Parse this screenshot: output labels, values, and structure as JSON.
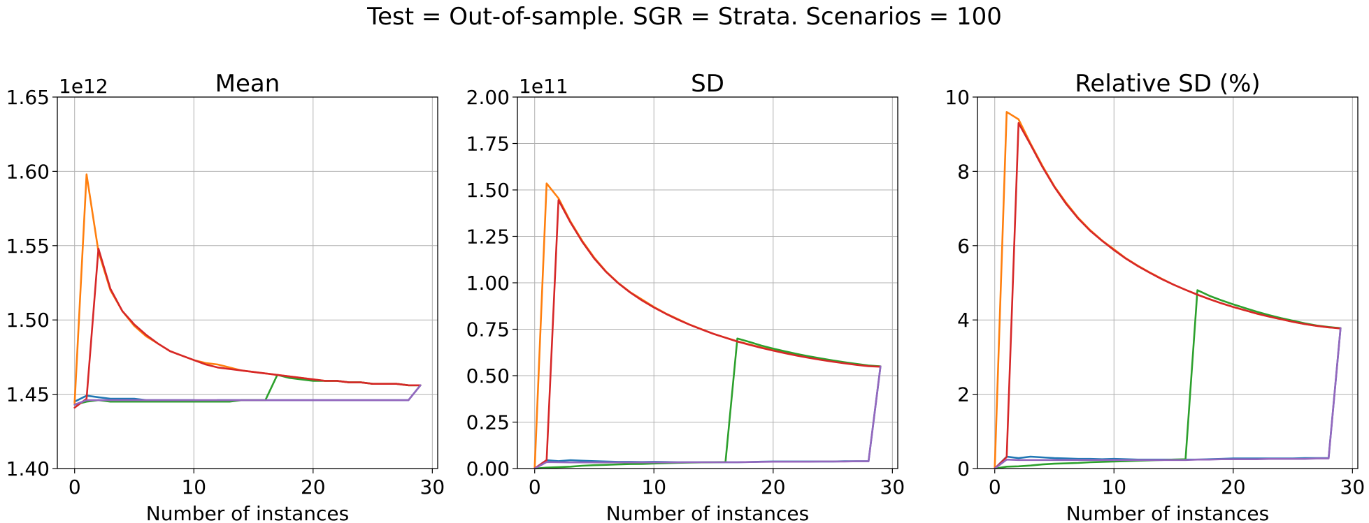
{
  "figure": {
    "suptitle": "Test = Out-of-sample. SGR = Strata. Scenarios = 100"
  },
  "colors": {
    "C0": "#1f77b4",
    "C1": "#ff7f0e",
    "C2": "#2ca02c",
    "C3": "#d62728",
    "C4": "#9467bd"
  },
  "chart_data": [
    {
      "type": "line",
      "title": "Mean",
      "xlabel": "Number of instances",
      "ylabel": "",
      "offset_text": "1e12",
      "xlim": [
        -1.45,
        30.45
      ],
      "ylim": [
        1.4,
        1.65
      ],
      "xticks": [
        0,
        10,
        20,
        30
      ],
      "yticks": [
        1.4,
        1.45,
        1.5,
        1.55,
        1.6,
        1.65
      ],
      "ytick_labels": [
        "1.40",
        "1.45",
        "1.50",
        "1.55",
        "1.60",
        "1.65"
      ],
      "grid": true,
      "series": [
        {
          "color": "#1f77b4",
          "x": [
            0,
            1,
            2,
            3,
            4,
            5,
            6,
            7,
            8,
            9,
            10,
            11,
            12,
            13,
            14,
            15,
            16,
            17,
            18,
            19,
            20,
            21,
            22,
            23,
            24,
            25,
            26,
            27,
            28,
            29
          ],
          "values": [
            1.445,
            1.449,
            1.448,
            1.447,
            1.447,
            1.447,
            1.446,
            1.446,
            1.446,
            1.446,
            1.446,
            1.445,
            1.446,
            1.446,
            1.446,
            1.446,
            1.446,
            1.446,
            1.446,
            1.446,
            1.446,
            1.446,
            1.446,
            1.446,
            1.446,
            1.446,
            1.446,
            1.446,
            1.446,
            1.456
          ]
        },
        {
          "color": "#ff7f0e",
          "x": [
            0,
            1,
            2,
            3,
            4,
            5,
            6,
            7,
            8,
            9,
            10,
            11,
            12,
            13,
            14,
            15,
            16,
            17,
            18,
            19,
            20,
            21,
            22,
            23,
            24,
            25,
            26,
            27,
            28,
            29
          ],
          "values": [
            1.444,
            1.598,
            1.546,
            1.52,
            1.506,
            1.496,
            1.489,
            1.484,
            1.479,
            1.476,
            1.473,
            1.471,
            1.47,
            1.468,
            1.466,
            1.465,
            1.464,
            1.463,
            1.462,
            1.461,
            1.46,
            1.459,
            1.459,
            1.458,
            1.458,
            1.457,
            1.457,
            1.457,
            1.456,
            1.456
          ]
        },
        {
          "color": "#2ca02c",
          "x": [
            0,
            1,
            2,
            3,
            4,
            5,
            6,
            7,
            8,
            9,
            10,
            11,
            12,
            13,
            14,
            15,
            16,
            17,
            18,
            19,
            20,
            21,
            22,
            23,
            24,
            25,
            26,
            27,
            28,
            29
          ],
          "values": [
            1.443,
            1.445,
            1.446,
            1.445,
            1.445,
            1.445,
            1.445,
            1.445,
            1.445,
            1.445,
            1.445,
            1.445,
            1.445,
            1.445,
            1.446,
            1.446,
            1.446,
            1.463,
            1.461,
            1.46,
            1.459,
            1.459,
            1.459,
            1.458,
            1.458,
            1.457,
            1.457,
            1.457,
            1.456,
            1.456
          ]
        },
        {
          "color": "#d62728",
          "x": [
            0,
            1,
            2,
            3,
            4,
            5,
            6,
            7,
            8,
            9,
            10,
            11,
            12,
            13,
            14,
            15,
            16,
            17,
            18,
            19,
            20,
            21,
            22,
            23,
            24,
            25,
            26,
            27,
            28,
            29
          ],
          "values": [
            1.441,
            1.447,
            1.548,
            1.521,
            1.506,
            1.497,
            1.49,
            1.484,
            1.479,
            1.476,
            1.473,
            1.47,
            1.468,
            1.467,
            1.466,
            1.465,
            1.464,
            1.463,
            1.462,
            1.461,
            1.46,
            1.459,
            1.459,
            1.458,
            1.458,
            1.457,
            1.457,
            1.457,
            1.456,
            1.456
          ]
        },
        {
          "color": "#9467bd",
          "x": [
            0,
            1,
            2,
            3,
            4,
            5,
            6,
            7,
            8,
            9,
            10,
            11,
            12,
            13,
            14,
            15,
            16,
            17,
            18,
            19,
            20,
            21,
            22,
            23,
            24,
            25,
            26,
            27,
            28,
            29
          ],
          "values": [
            1.443,
            1.446,
            1.446,
            1.446,
            1.446,
            1.446,
            1.446,
            1.446,
            1.446,
            1.446,
            1.446,
            1.446,
            1.446,
            1.446,
            1.446,
            1.446,
            1.446,
            1.446,
            1.446,
            1.446,
            1.446,
            1.446,
            1.446,
            1.446,
            1.446,
            1.446,
            1.446,
            1.446,
            1.446,
            1.456
          ]
        }
      ]
    },
    {
      "type": "line",
      "title": "SD",
      "xlabel": "Number of instances",
      "ylabel": "",
      "offset_text": "1e11",
      "xlim": [
        -1.45,
        30.45
      ],
      "ylim": [
        0.0,
        2.0
      ],
      "xticks": [
        0,
        10,
        20,
        30
      ],
      "yticks": [
        0.0,
        0.25,
        0.5,
        0.75,
        1.0,
        1.25,
        1.5,
        1.75,
        2.0
      ],
      "ytick_labels": [
        "0.00",
        "0.25",
        "0.50",
        "0.75",
        "1.00",
        "1.25",
        "1.50",
        "1.75",
        "2.00"
      ],
      "grid": true,
      "series": [
        {
          "color": "#1f77b4",
          "x": [
            0,
            1,
            2,
            3,
            4,
            5,
            6,
            7,
            8,
            9,
            10,
            11,
            12,
            13,
            14,
            15,
            16,
            17,
            18,
            19,
            20,
            21,
            22,
            23,
            24,
            25,
            26,
            27,
            28,
            29
          ],
          "values": [
            0.0,
            0.045,
            0.04,
            0.045,
            0.042,
            0.04,
            0.038,
            0.036,
            0.036,
            0.035,
            0.036,
            0.035,
            0.034,
            0.034,
            0.034,
            0.034,
            0.034,
            0.034,
            0.035,
            0.037,
            0.038,
            0.038,
            0.038,
            0.038,
            0.038,
            0.038,
            0.039,
            0.039,
            0.039,
            0.55
          ]
        },
        {
          "color": "#ff7f0e",
          "x": [
            0,
            1,
            2,
            3,
            4,
            5,
            6,
            7,
            8,
            9,
            10,
            11,
            12,
            13,
            14,
            15,
            16,
            17,
            18,
            19,
            20,
            21,
            22,
            23,
            24,
            25,
            26,
            27,
            28,
            29
          ],
          "values": [
            0.0,
            1.535,
            1.455,
            1.33,
            1.225,
            1.135,
            1.06,
            1.0,
            0.95,
            0.91,
            0.87,
            0.835,
            0.805,
            0.775,
            0.75,
            0.725,
            0.705,
            0.685,
            0.668,
            0.652,
            0.637,
            0.623,
            0.61,
            0.598,
            0.587,
            0.577,
            0.568,
            0.56,
            0.553,
            0.55
          ]
        },
        {
          "color": "#2ca02c",
          "x": [
            0,
            1,
            2,
            3,
            4,
            5,
            6,
            7,
            8,
            9,
            10,
            11,
            12,
            13,
            14,
            15,
            16,
            17,
            18,
            19,
            20,
            21,
            22,
            23,
            24,
            25,
            26,
            27,
            28,
            29
          ],
          "values": [
            0.0,
            0.005,
            0.007,
            0.01,
            0.015,
            0.018,
            0.02,
            0.022,
            0.024,
            0.025,
            0.027,
            0.029,
            0.031,
            0.032,
            0.033,
            0.034,
            0.035,
            0.7,
            0.682,
            0.662,
            0.646,
            0.631,
            0.617,
            0.604,
            0.593,
            0.582,
            0.572,
            0.563,
            0.555,
            0.55
          ]
        },
        {
          "color": "#d62728",
          "x": [
            0,
            1,
            2,
            3,
            4,
            5,
            6,
            7,
            8,
            9,
            10,
            11,
            12,
            13,
            14,
            15,
            16,
            17,
            18,
            19,
            20,
            21,
            22,
            23,
            24,
            25,
            26,
            27,
            28,
            29
          ],
          "values": [
            0.0,
            0.045,
            1.445,
            1.325,
            1.22,
            1.13,
            1.058,
            0.998,
            0.948,
            0.905,
            0.867,
            0.833,
            0.802,
            0.774,
            0.749,
            0.725,
            0.704,
            0.684,
            0.666,
            0.65,
            0.635,
            0.621,
            0.608,
            0.596,
            0.585,
            0.575,
            0.566,
            0.558,
            0.551,
            0.548
          ]
        },
        {
          "color": "#9467bd",
          "x": [
            0,
            1,
            2,
            3,
            4,
            5,
            6,
            7,
            8,
            9,
            10,
            11,
            12,
            13,
            14,
            15,
            16,
            17,
            18,
            19,
            20,
            21,
            22,
            23,
            24,
            25,
            26,
            27,
            28,
            29
          ],
          "values": [
            0.0,
            0.035,
            0.034,
            0.033,
            0.033,
            0.033,
            0.033,
            0.033,
            0.033,
            0.033,
            0.033,
            0.033,
            0.033,
            0.034,
            0.034,
            0.034,
            0.034,
            0.034,
            0.035,
            0.036,
            0.037,
            0.037,
            0.037,
            0.037,
            0.038,
            0.038,
            0.038,
            0.039,
            0.039,
            0.55
          ]
        }
      ]
    },
    {
      "type": "line",
      "title": "Relative SD (%)",
      "xlabel": "Number of instances",
      "ylabel": "",
      "offset_text": "",
      "xlim": [
        -1.45,
        30.45
      ],
      "ylim": [
        0,
        10
      ],
      "xticks": [
        0,
        10,
        20,
        30
      ],
      "yticks": [
        0,
        2,
        4,
        6,
        8,
        10
      ],
      "ytick_labels": [
        "0",
        "2",
        "4",
        "6",
        "8",
        "10"
      ],
      "grid": true,
      "series": [
        {
          "color": "#1f77b4",
          "x": [
            0,
            1,
            2,
            3,
            4,
            5,
            6,
            7,
            8,
            9,
            10,
            11,
            12,
            13,
            14,
            15,
            16,
            17,
            18,
            19,
            20,
            21,
            22,
            23,
            24,
            25,
            26,
            27,
            28,
            29
          ],
          "values": [
            0.0,
            0.32,
            0.28,
            0.32,
            0.3,
            0.28,
            0.27,
            0.26,
            0.26,
            0.25,
            0.26,
            0.25,
            0.24,
            0.24,
            0.24,
            0.24,
            0.24,
            0.24,
            0.25,
            0.26,
            0.27,
            0.27,
            0.27,
            0.27,
            0.27,
            0.27,
            0.28,
            0.28,
            0.28,
            3.78
          ]
        },
        {
          "color": "#ff7f0e",
          "x": [
            0,
            1,
            2,
            3,
            4,
            5,
            6,
            7,
            8,
            9,
            10,
            11,
            12,
            13,
            14,
            15,
            16,
            17,
            18,
            19,
            20,
            21,
            22,
            23,
            24,
            25,
            26,
            27,
            28,
            29
          ],
          "values": [
            0.0,
            9.6,
            9.4,
            8.75,
            8.15,
            7.6,
            7.15,
            6.75,
            6.42,
            6.14,
            5.9,
            5.66,
            5.46,
            5.28,
            5.11,
            4.95,
            4.81,
            4.68,
            4.56,
            4.45,
            4.35,
            4.26,
            4.17,
            4.09,
            4.02,
            3.95,
            3.89,
            3.84,
            3.8,
            3.78
          ]
        },
        {
          "color": "#2ca02c",
          "x": [
            0,
            1,
            2,
            3,
            4,
            5,
            6,
            7,
            8,
            9,
            10,
            11,
            12,
            13,
            14,
            15,
            16,
            17,
            18,
            19,
            20,
            21,
            22,
            23,
            24,
            25,
            26,
            27,
            28,
            29
          ],
          "values": [
            0.0,
            0.05,
            0.06,
            0.08,
            0.11,
            0.13,
            0.14,
            0.15,
            0.17,
            0.18,
            0.19,
            0.2,
            0.21,
            0.22,
            0.23,
            0.24,
            0.25,
            4.8,
            4.65,
            4.53,
            4.42,
            4.32,
            4.22,
            4.13,
            4.05,
            3.98,
            3.91,
            3.85,
            3.81,
            3.78
          ]
        },
        {
          "color": "#d62728",
          "x": [
            0,
            1,
            2,
            3,
            4,
            5,
            6,
            7,
            8,
            9,
            10,
            11,
            12,
            13,
            14,
            15,
            16,
            17,
            18,
            19,
            20,
            21,
            22,
            23,
            24,
            25,
            26,
            27,
            28,
            29
          ],
          "values": [
            0.0,
            0.31,
            9.3,
            8.72,
            8.12,
            7.58,
            7.12,
            6.73,
            6.4,
            6.13,
            5.88,
            5.65,
            5.45,
            5.27,
            5.1,
            4.95,
            4.81,
            4.68,
            4.56,
            4.45,
            4.35,
            4.26,
            4.17,
            4.09,
            4.02,
            3.95,
            3.89,
            3.84,
            3.8,
            3.77
          ]
        },
        {
          "color": "#9467bd",
          "x": [
            0,
            1,
            2,
            3,
            4,
            5,
            6,
            7,
            8,
            9,
            10,
            11,
            12,
            13,
            14,
            15,
            16,
            17,
            18,
            19,
            20,
            21,
            22,
            23,
            24,
            25,
            26,
            27,
            28,
            29
          ],
          "values": [
            0.0,
            0.24,
            0.23,
            0.23,
            0.23,
            0.23,
            0.23,
            0.23,
            0.23,
            0.23,
            0.23,
            0.23,
            0.23,
            0.23,
            0.23,
            0.23,
            0.23,
            0.24,
            0.24,
            0.25,
            0.25,
            0.25,
            0.25,
            0.26,
            0.26,
            0.26,
            0.26,
            0.27,
            0.27,
            3.78
          ]
        }
      ]
    }
  ]
}
